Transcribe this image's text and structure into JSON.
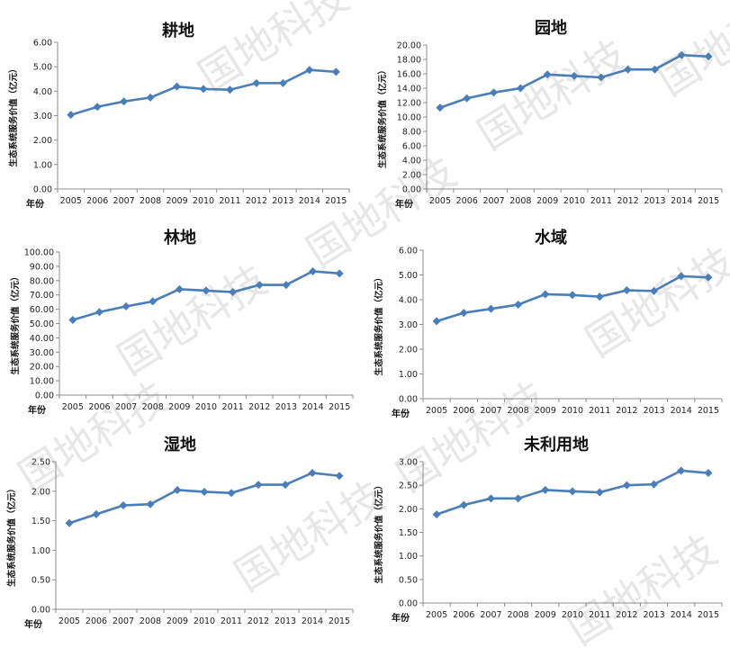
{
  "accent_color": "#4F81BD",
  "line_color": "#4A7EBB",
  "watermark_text": "国地科技",
  "y_axis_label": "生态系统服务价值（亿元）",
  "x_axis_label": "年份",
  "chart_data": [
    {
      "type": "line",
      "title": "耕地",
      "xlabel": "年份",
      "ylabel": "生态系统服务价值（亿元）",
      "categories": [
        "2005",
        "2006",
        "2007",
        "2008",
        "2009",
        "2010",
        "2011",
        "2012",
        "2013",
        "2014",
        "2015"
      ],
      "values": [
        3.03,
        3.36,
        3.58,
        3.74,
        4.19,
        4.09,
        4.06,
        4.33,
        4.33,
        4.87,
        4.79
      ],
      "ylim": [
        0,
        6
      ],
      "yticks": [
        "0.00",
        "1.00",
        "2.00",
        "3.00",
        "4.00",
        "5.00",
        "6.00"
      ],
      "marker": "diamond",
      "grid": false
    },
    {
      "type": "line",
      "title": "园地",
      "xlabel": "年份",
      "ylabel": "生态系统服务价值（亿元）",
      "categories": [
        "2005",
        "2006",
        "2007",
        "2008",
        "2009",
        "2010",
        "2011",
        "2012",
        "2013",
        "2014",
        "2015"
      ],
      "values": [
        11.3,
        12.6,
        13.4,
        14.0,
        15.9,
        15.7,
        15.5,
        16.6,
        16.6,
        18.6,
        18.4
      ],
      "ylim": [
        0,
        20
      ],
      "yticks": [
        "0.00",
        "2.00",
        "4.00",
        "6.00",
        "8.00",
        "10.00",
        "12.00",
        "14.00",
        "16.00",
        "18.00",
        "20.00"
      ],
      "marker": "diamond",
      "grid": false
    },
    {
      "type": "line",
      "title": "林地",
      "xlabel": "年份",
      "ylabel": "生态系统服务价值（亿元）",
      "categories": [
        "2005",
        "2006",
        "2007",
        "2008",
        "2009",
        "2010",
        "2011",
        "2012",
        "2013",
        "2014",
        "2015"
      ],
      "values": [
        52.5,
        58.0,
        62.0,
        65.5,
        74.0,
        73.0,
        72.0,
        77.0,
        77.0,
        86.5,
        85.0
      ],
      "ylim": [
        0,
        100
      ],
      "yticks": [
        "0.00",
        "10.00",
        "20.00",
        "30.00",
        "40.00",
        "50.00",
        "60.00",
        "70.00",
        "80.00",
        "90.00",
        "100.00"
      ],
      "marker": "diamond",
      "grid": false
    },
    {
      "type": "line",
      "title": "水域",
      "xlabel": "年份",
      "ylabel": "生态系统服务价值（亿元）",
      "categories": [
        "2005",
        "2006",
        "2007",
        "2008",
        "2009",
        "2010",
        "2011",
        "2012",
        "2013",
        "2014",
        "2015"
      ],
      "values": [
        3.13,
        3.47,
        3.63,
        3.8,
        4.22,
        4.19,
        4.12,
        4.38,
        4.35,
        4.95,
        4.9
      ],
      "ylim": [
        0,
        6
      ],
      "yticks": [
        "0.00",
        "1.00",
        "2.00",
        "3.00",
        "4.00",
        "5.00",
        "6.00"
      ],
      "marker": "diamond",
      "grid": false
    },
    {
      "type": "line",
      "title": "湿地",
      "xlabel": "年份",
      "ylabel": "生态系统服务价值（亿元）",
      "categories": [
        "2005",
        "2006",
        "2007",
        "2008",
        "2009",
        "2010",
        "2011",
        "2012",
        "2013",
        "2014",
        "2015"
      ],
      "values": [
        1.46,
        1.61,
        1.76,
        1.78,
        2.02,
        1.99,
        1.97,
        2.11,
        2.11,
        2.31,
        2.26
      ],
      "ylim": [
        0,
        2.5
      ],
      "yticks": [
        "0.00",
        "0.50",
        "1.00",
        "1.50",
        "2.00",
        "2.50"
      ],
      "marker": "diamond",
      "grid": false
    },
    {
      "type": "line",
      "title": "未利用地",
      "xlabel": "年份",
      "ylabel": "生态系统服务价值（亿元）",
      "categories": [
        "2005",
        "2006",
        "2007",
        "2008",
        "2009",
        "2010",
        "2011",
        "2012",
        "2013",
        "2014",
        "2015"
      ],
      "values": [
        1.88,
        2.08,
        2.22,
        2.22,
        2.4,
        2.37,
        2.35,
        2.5,
        2.52,
        2.81,
        2.76
      ],
      "ylim": [
        0,
        3
      ],
      "yticks": [
        "0.00",
        "0.50",
        "1.00",
        "1.50",
        "2.00",
        "2.50",
        "3.00"
      ],
      "marker": "diamond",
      "grid": false
    }
  ]
}
